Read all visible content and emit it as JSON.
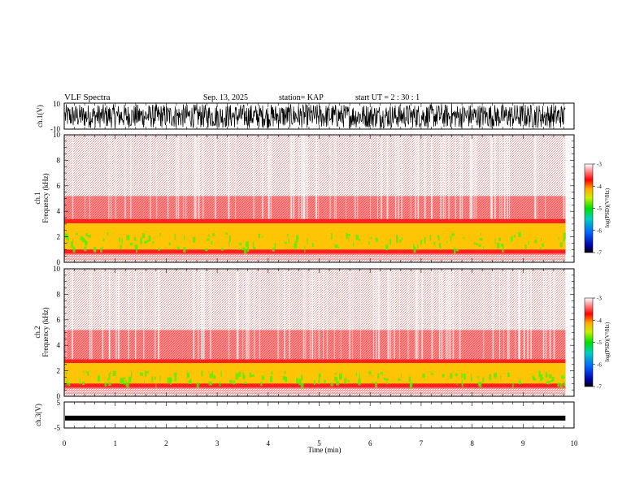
{
  "header": {
    "title": "VLF Spectra",
    "date": "Sep. 13, 2025",
    "station": "station= KAP",
    "start": "start  UT =   2 : 30 : 1"
  },
  "chart_data": [
    {
      "type": "line",
      "name": "ch1-waveform",
      "ylabel": "ch.1(V)",
      "ylim": [
        -10,
        10
      ],
      "tick_labels": [
        "10",
        "-10"
      ],
      "xlim": [
        0,
        10
      ],
      "data_end_min": 9.83
    },
    {
      "type": "heatmap",
      "name": "ch1-spectrogram",
      "ylabel": "ch.1\nFrequency (kHz)",
      "ylabel_lines": [
        "ch.1",
        "Frequency (kHz)"
      ],
      "ylim": [
        0,
        10
      ],
      "ytick_labels": [
        "0",
        "2",
        "4",
        "6",
        "8",
        "10"
      ],
      "band_top_khz": 3.4,
      "colorbar": {
        "label": "log(PSD)(V²/Hz)",
        "range": [
          -7,
          -3
        ],
        "tick_labels": [
          "-3",
          "-4",
          "-5",
          "-6",
          "-7"
        ]
      }
    },
    {
      "type": "heatmap",
      "name": "ch2-spectrogram",
      "ylabel_lines": [
        "ch.2",
        "Frequency (kHz)"
      ],
      "ylim": [
        0,
        10
      ],
      "ytick_labels": [
        "0",
        "2",
        "4",
        "6",
        "8",
        "10"
      ],
      "band_top_khz": 2.9,
      "colorbar": {
        "label": "log(PSD)(V²/Hz)",
        "range": [
          -7,
          -3
        ],
        "tick_labels": [
          "-3",
          "-4",
          "-5",
          "-6",
          "-7"
        ]
      }
    },
    {
      "type": "line",
      "name": "ch3-waveform",
      "ylabel": "ch.3(V)",
      "ylim": [
        -5,
        5
      ],
      "tick_labels": [
        "5",
        "-5"
      ],
      "xlim": [
        0,
        10
      ],
      "level_v": -1.2
    }
  ],
  "xaxis": {
    "label": "Time (min)",
    "tick_labels": [
      "0",
      "1",
      "2",
      "3",
      "4",
      "5",
      "6",
      "7",
      "8",
      "9",
      "10"
    ],
    "range": [
      0,
      10
    ]
  },
  "colors": {
    "band_red": "#ff0000",
    "band_yellow": "#ffee00",
    "band_green": "#55ee00",
    "waveform": "#000000"
  }
}
